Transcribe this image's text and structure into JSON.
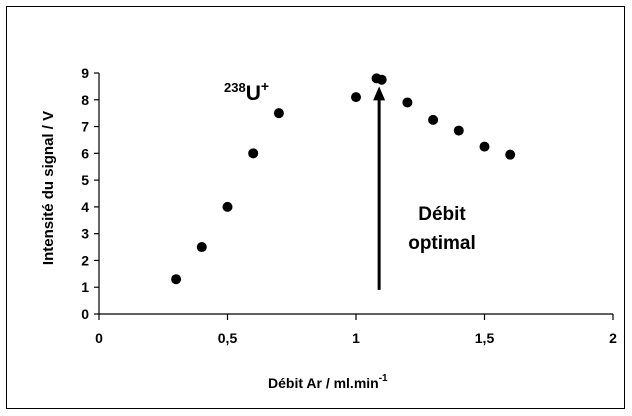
{
  "chart_data": {
    "type": "scatter",
    "title": "",
    "xlabel": "Débit Ar / ml.min",
    "xlabel_superscript": "-1",
    "ylabel": "Intensité du signal / V",
    "xlim": [
      0,
      2
    ],
    "ylim": [
      0,
      9
    ],
    "x_ticks": [
      "0",
      "0,5",
      "1",
      "1,5",
      "2"
    ],
    "y_ticks": [
      "0",
      "1",
      "2",
      "3",
      "4",
      "5",
      "6",
      "7",
      "8",
      "9"
    ],
    "grid": false,
    "series": [
      {
        "x": [
          0.3,
          0.4,
          0.5,
          0.6,
          0.7,
          1.0,
          1.08,
          1.1,
          1.2,
          1.3,
          1.4,
          1.5,
          1.6
        ],
        "y": [
          1.3,
          2.5,
          4.0,
          6.0,
          7.5,
          8.1,
          8.8,
          8.75,
          7.9,
          7.25,
          6.85,
          6.25,
          5.95
        ]
      }
    ],
    "annotations": {
      "isotope_mass": "238",
      "isotope_symbol": "U",
      "isotope_charge": "+",
      "arrow_x": 1.09,
      "arrow_from_y": 0.9,
      "arrow_to_y": 8.5,
      "arrow_text_line1": "Débit",
      "arrow_text_line2": "optimal"
    },
    "colors": {
      "marker": "#000000",
      "axis": "#000000"
    }
  }
}
